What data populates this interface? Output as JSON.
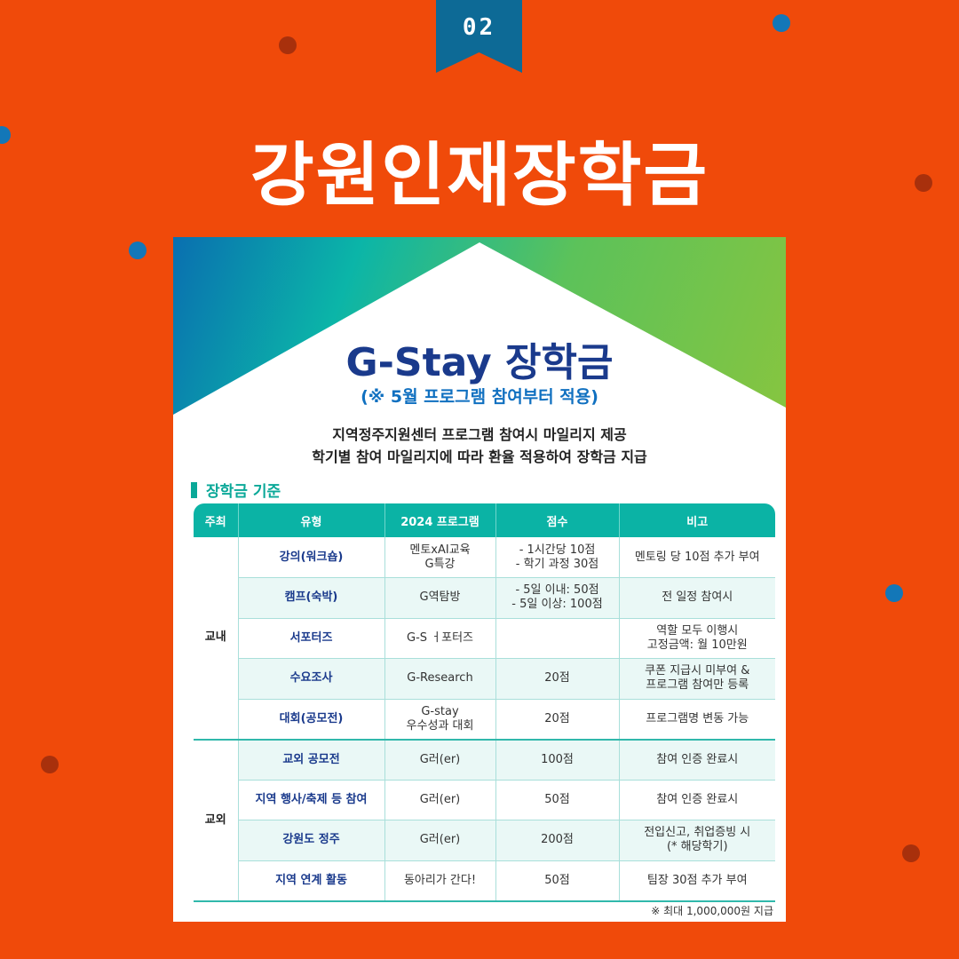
{
  "ribbon": "02",
  "title": "강원인재장학금",
  "card": {
    "title": "G-Stay 장학금",
    "subtitle": "(※ 5월 프로그램 참여부터 적용)",
    "desc1": "지역정주지원센터 프로그램 참여시 마일리지 제공",
    "desc2": "학기별 참여 마일리지에 따라 환율 적용하여 장학금 지급",
    "section": "장학금 기준",
    "headers": [
      "주최",
      "유형",
      "2024 프로그램",
      "점수",
      "비고"
    ],
    "groups": [
      {
        "name": "교내",
        "rows": [
          [
            "강의(워크숍)",
            "멘토xAI교육\nG특강",
            "- 1시간당 10점\n- 학기 과정 30점",
            "멘토링 당 10점 추가 부여"
          ],
          [
            "캠프(숙박)",
            "G역탐방",
            "- 5일 이내: 50점\n- 5일 이상: 100점",
            "전 일정 참여시"
          ],
          [
            "서포터즈",
            "G-S ㅓ포터즈",
            "",
            "역할 모두 이행시\n고정금액: 월 10만원"
          ],
          [
            "수요조사",
            "G-Research",
            "20점",
            "쿠폰 지급시 미부여 &\n프로그램 참여만 등록"
          ],
          [
            "대회(공모전)",
            "G-stay\n우수성과 대회",
            "20점",
            "프로그램명 변동 가능"
          ]
        ]
      },
      {
        "name": "교외",
        "rows": [
          [
            "교외 공모전",
            "G러(er)",
            "100점",
            "참여 인증 완료시"
          ],
          [
            "지역 행사/축제 등 참여",
            "G러(er)",
            "50점",
            "참여 인증 완료시"
          ],
          [
            "강원도 정주",
            "G러(er)",
            "200점",
            "전입신고, 취업증빙 시\n(* 해당학기)"
          ],
          [
            "지역 연계 활동",
            "동아리가 간다!",
            "50점",
            "팀장 30점 추가 부여"
          ]
        ]
      }
    ],
    "note": "※ 최대 1,000,000원 지급"
  },
  "colors": {
    "background": "#f04a0a",
    "accent": "#0bb3a5",
    "navy": "#1a3a8c",
    "ribbon": "#0d6a96"
  }
}
